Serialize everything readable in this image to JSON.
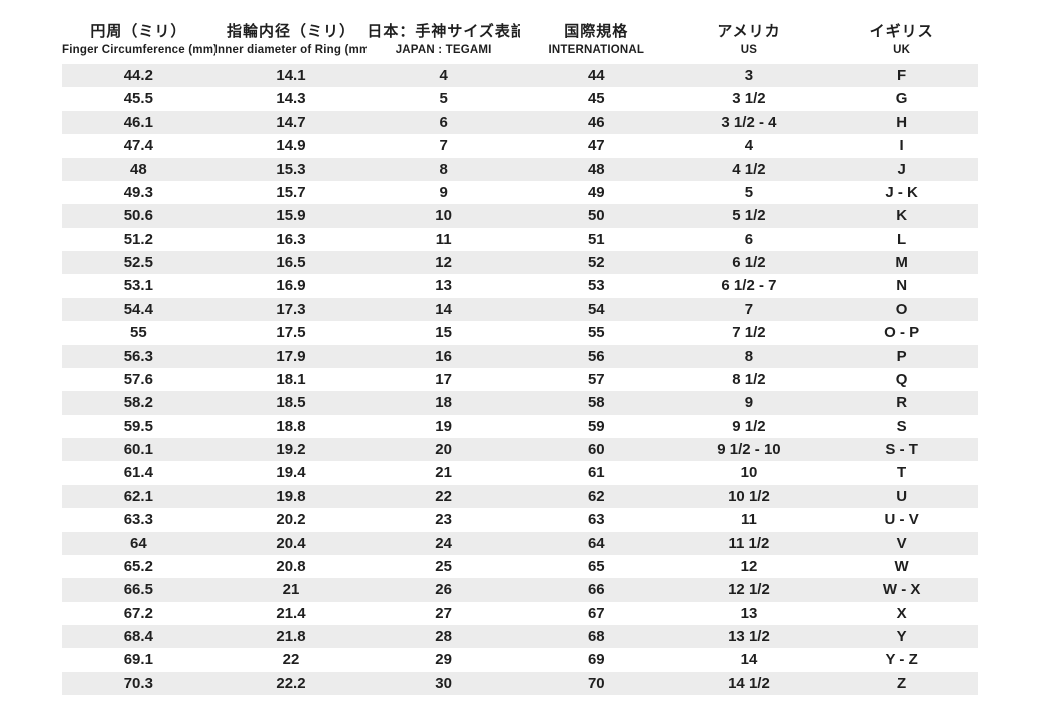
{
  "chart_data": {
    "type": "table",
    "stripe_color": "#ececec",
    "text_color": "#1f1f1f",
    "background_color": "#ffffff",
    "columns": [
      {
        "jp": "円周（ミリ）",
        "en": "Finger Circumference (mm)"
      },
      {
        "jp": "指輪内径（ミリ）",
        "en": "Inner diameter of Ring (mm)"
      },
      {
        "jp": "日本：手神サイズ表記",
        "en": "JAPAN : TEGAMI"
      },
      {
        "jp": "国際規格",
        "en": "INTERNATIONAL"
      },
      {
        "jp": "アメリカ",
        "en": "US"
      },
      {
        "jp": "イギリス",
        "en": "UK"
      }
    ],
    "rows": [
      [
        "44.2",
        "14.1",
        "4",
        "44",
        "3",
        "F"
      ],
      [
        "45.5",
        "14.3",
        "5",
        "45",
        "3 1/2",
        "G"
      ],
      [
        "46.1",
        "14.7",
        "6",
        "46",
        "3 1/2 - 4",
        "H"
      ],
      [
        "47.4",
        "14.9",
        "7",
        "47",
        "4",
        "I"
      ],
      [
        "48",
        "15.3",
        "8",
        "48",
        "4 1/2",
        "J"
      ],
      [
        "49.3",
        "15.7",
        "9",
        "49",
        "5",
        "J - K"
      ],
      [
        "50.6",
        "15.9",
        "10",
        "50",
        "5 1/2",
        "K"
      ],
      [
        "51.2",
        "16.3",
        "11",
        "51",
        "6",
        "L"
      ],
      [
        "52.5",
        "16.5",
        "12",
        "52",
        "6 1/2",
        "M"
      ],
      [
        "53.1",
        "16.9",
        "13",
        "53",
        "6 1/2 - 7",
        "N"
      ],
      [
        "54.4",
        "17.3",
        "14",
        "54",
        "7",
        "O"
      ],
      [
        "55",
        "17.5",
        "15",
        "55",
        "7 1/2",
        "O - P"
      ],
      [
        "56.3",
        "17.9",
        "16",
        "56",
        "8",
        "P"
      ],
      [
        "57.6",
        "18.1",
        "17",
        "57",
        "8 1/2",
        "Q"
      ],
      [
        "58.2",
        "18.5",
        "18",
        "58",
        "9",
        "R"
      ],
      [
        "59.5",
        "18.8",
        "19",
        "59",
        "9 1/2",
        "S"
      ],
      [
        "60.1",
        "19.2",
        "20",
        "60",
        "9 1/2 - 10",
        "S - T"
      ],
      [
        "61.4",
        "19.4",
        "21",
        "61",
        "10",
        "T"
      ],
      [
        "62.1",
        "19.8",
        "22",
        "62",
        "10 1/2",
        "U"
      ],
      [
        "63.3",
        "20.2",
        "23",
        "63",
        "11",
        "U - V"
      ],
      [
        "64",
        "20.4",
        "24",
        "64",
        "11 1/2",
        "V"
      ],
      [
        "65.2",
        "20.8",
        "25",
        "65",
        "12",
        "W"
      ],
      [
        "66.5",
        "21",
        "26",
        "66",
        "12 1/2",
        "W - X"
      ],
      [
        "67.2",
        "21.4",
        "27",
        "67",
        "13",
        "X"
      ],
      [
        "68.4",
        "21.8",
        "28",
        "68",
        "13 1/2",
        "Y"
      ],
      [
        "69.1",
        "22",
        "29",
        "69",
        "14",
        "Y - Z"
      ],
      [
        "70.3",
        "22.2",
        "30",
        "70",
        "14 1/2",
        "Z"
      ]
    ]
  }
}
